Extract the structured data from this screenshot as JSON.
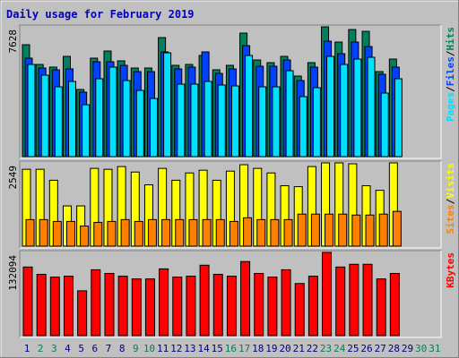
{
  "title": "Daily usage for February 2019",
  "legend_separator": "/",
  "chart_data": [
    {
      "type": "bar",
      "ylim": [
        0,
        7628
      ],
      "yticks": [
        7628
      ],
      "series": [
        {
          "name": "Hits",
          "color": "#00805c",
          "values": [
            6576,
            5418,
            5261,
            5892,
            3946,
            5787,
            6208,
            5629,
            5208,
            5208,
            6997,
            5366,
            5418,
            5945,
            5103,
            5366,
            7260,
            5682,
            5524,
            5892,
            4735,
            5524,
            7628,
            6734,
            7470,
            7365,
            4998,
            5734,
            null,
            null,
            null
          ]
        },
        {
          "name": "Files",
          "color": "#0040ff",
          "values": [
            5787,
            5208,
            5103,
            5155,
            3788,
            5577,
            5577,
            5366,
            4998,
            4998,
            6155,
            5155,
            5261,
            6155,
            4892,
            5155,
            6523,
            5313,
            5313,
            5682,
            4472,
            5261,
            6786,
            6050,
            6734,
            6471,
            4840,
            5261,
            null,
            null,
            null
          ]
        },
        {
          "name": "Pages",
          "color": "#00e0ff",
          "values": [
            5418,
            4787,
            4103,
            4419,
            3051,
            4577,
            5261,
            4472,
            3893,
            3419,
            6102,
            4261,
            4261,
            4419,
            4209,
            4156,
            5945,
            4103,
            4103,
            5050,
            3525,
            4051,
            5892,
            5418,
            5734,
            5839,
            3735,
            4577,
            null,
            null,
            null
          ]
        }
      ]
    },
    {
      "type": "bar",
      "ylim": [
        0,
        2549
      ],
      "yticks": [
        2549
      ],
      "series": [
        {
          "name": "Visits",
          "color": "#ffff00",
          "values": [
            2353,
            2353,
            2017,
            1232,
            1232,
            2381,
            2353,
            2437,
            2269,
            1877,
            2381,
            2017,
            2241,
            2325,
            2017,
            2297,
            2493,
            2381,
            2241,
            1849,
            1821,
            2437,
            2549,
            2549,
            2521,
            1849,
            1709,
            2549,
            null,
            null,
            null
          ]
        },
        {
          "name": "Sites",
          "color": "#ff8000",
          "values": [
            812,
            812,
            756,
            756,
            616,
            728,
            756,
            812,
            756,
            812,
            812,
            812,
            812,
            812,
            812,
            756,
            868,
            812,
            812,
            812,
            980,
            980,
            980,
            980,
            952,
            952,
            980,
            1064,
            null,
            null,
            null
          ]
        }
      ]
    },
    {
      "type": "bar",
      "ylim": [
        0,
        132094
      ],
      "yticks": [
        132094
      ],
      "categories": [
        "1",
        "2",
        "3",
        "4",
        "5",
        "6",
        "7",
        "8",
        "9",
        "10",
        "11",
        "12",
        "13",
        "14",
        "15",
        "16",
        "17",
        "18",
        "19",
        "20",
        "21",
        "22",
        "23",
        "24",
        "25",
        "26",
        "27",
        "28",
        "29",
        "30",
        "31"
      ],
      "category_colors": [
        "#000080",
        "#00805c",
        "#00805c",
        "#000080",
        "#000080",
        "#000080",
        "#000080",
        "#000080",
        "#00805c",
        "#00805c",
        "#000080",
        "#000080",
        "#000080",
        "#000080",
        "#000080",
        "#00805c",
        "#00805c",
        "#000080",
        "#000080",
        "#000080",
        "#000080",
        "#000080",
        "#00805c",
        "#00805c",
        "#000080",
        "#000080",
        "#000080",
        "#000080",
        "#000080",
        "#00805c",
        "#00805c"
      ],
      "series": [
        {
          "name": "KBytes",
          "color": "#ff0000",
          "values": [
            108869,
            97257,
            92902,
            94354,
            71127,
            104515,
            98709,
            94354,
            89999,
            89999,
            105967,
            92902,
            94354,
            111773,
            97257,
            94354,
            117579,
            98709,
            92902,
            104515,
            82740,
            94354,
            132094,
            108869,
            113224,
            113224,
            89999,
            98709,
            null,
            null,
            null
          ]
        }
      ]
    }
  ]
}
